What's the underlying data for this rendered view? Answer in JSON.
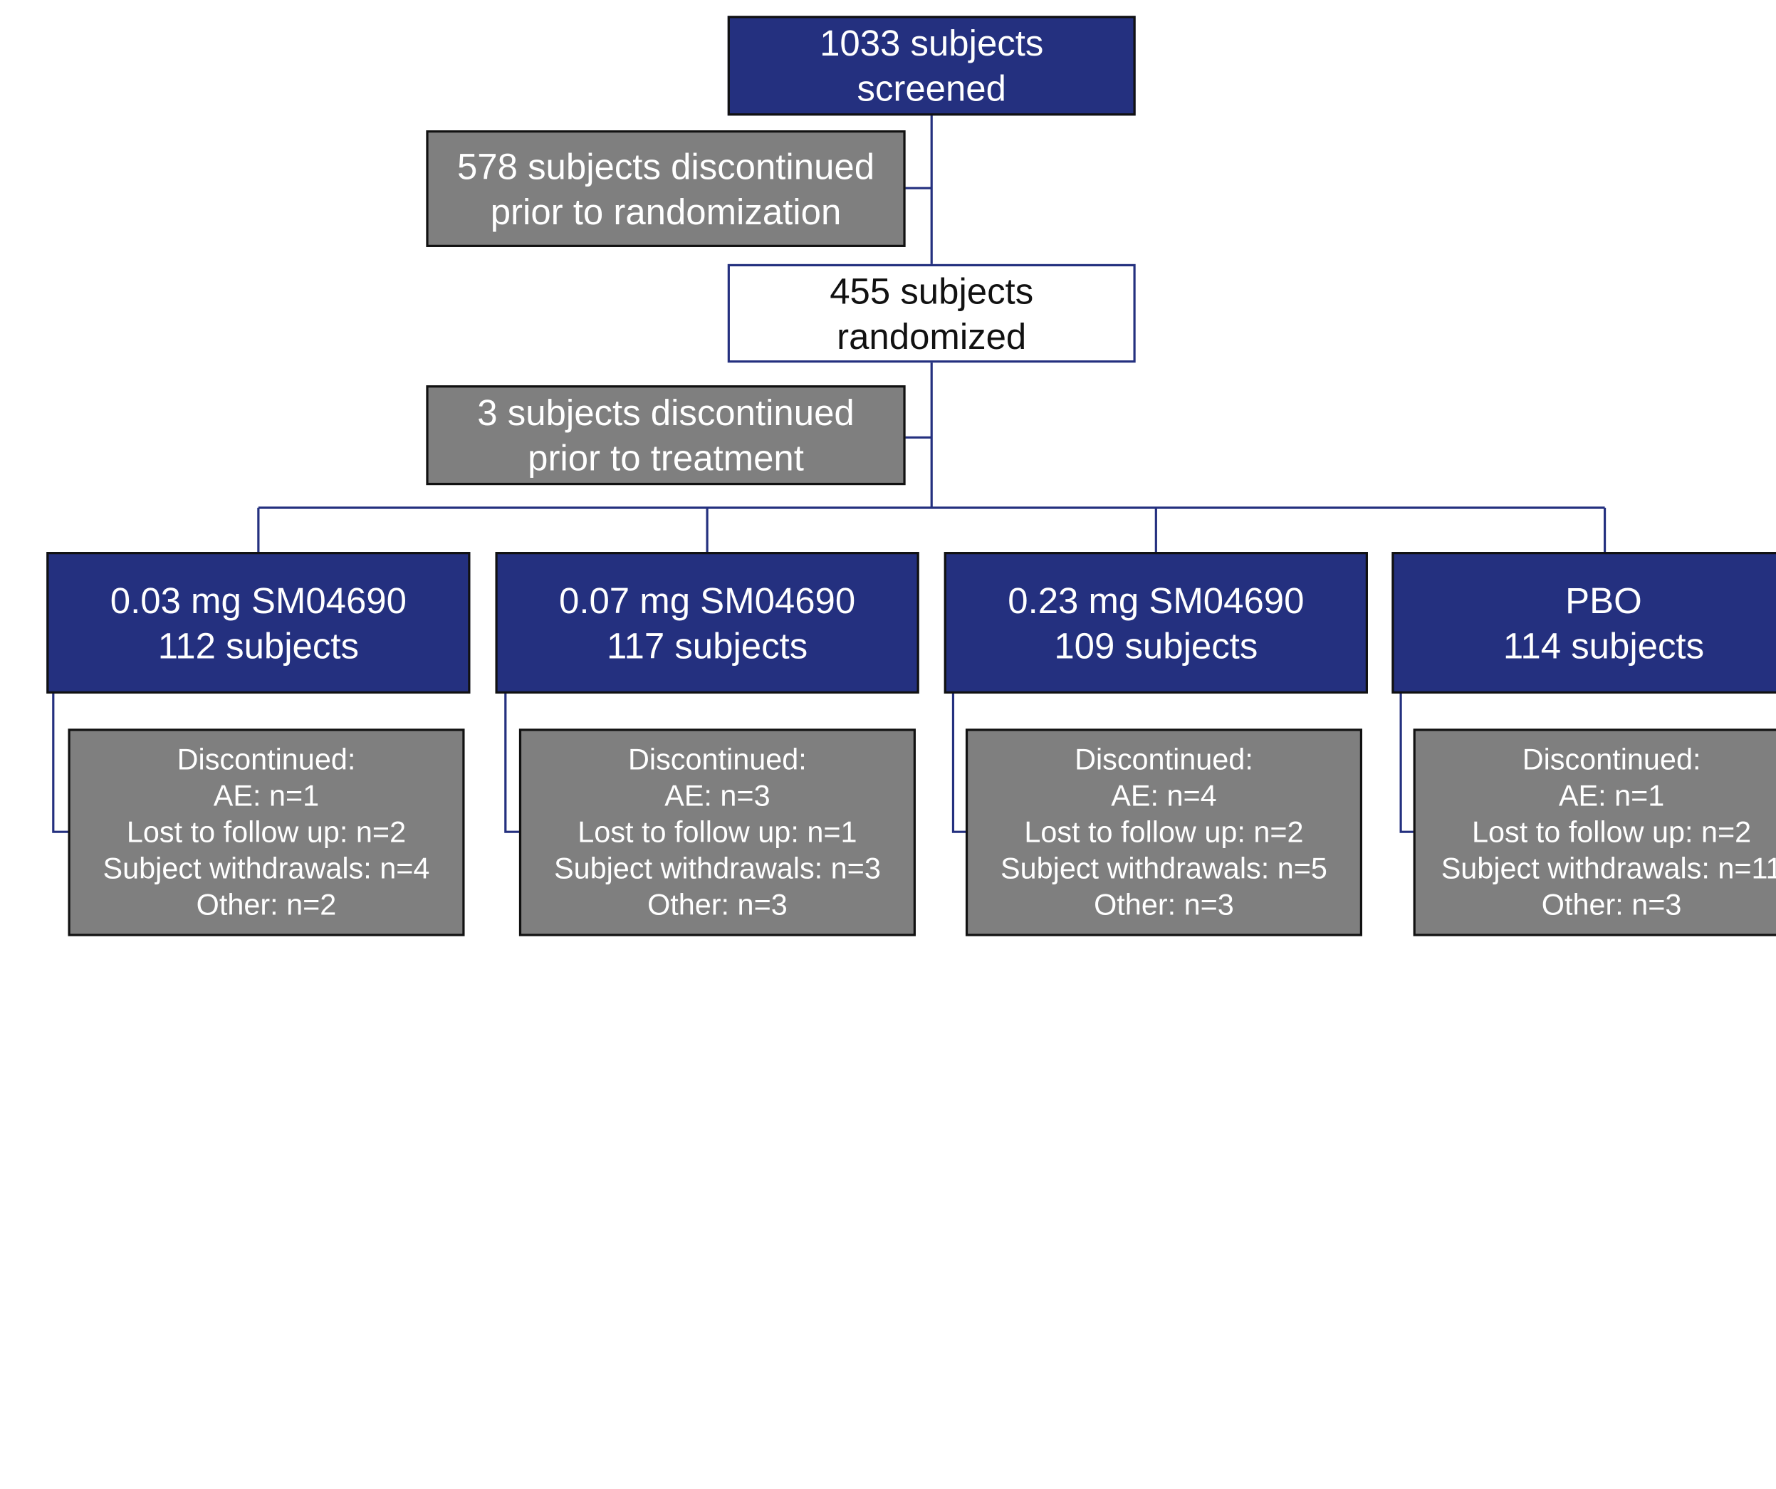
{
  "screened": {
    "line1": "1033 subjects",
    "line2": "screened"
  },
  "discontinued_prior_randomization": {
    "line1": "578 subjects discontinued",
    "line2": "prior to randomization"
  },
  "randomized": {
    "line1": "455 subjects",
    "line2": "randomized"
  },
  "discontinued_prior_treatment": {
    "line1": "3 subjects discontinued",
    "line2": "prior to treatment"
  },
  "arms": [
    {
      "name": "0.03 mg SM04690",
      "subjects": "112 subjects",
      "disc_title": "Discontinued:",
      "ae": "AE: n=1",
      "lost": "Lost to follow up: n=2",
      "withdrawals": "Subject withdrawals: n=4",
      "other": "Other: n=2"
    },
    {
      "name": "0.07 mg SM04690",
      "subjects": "117 subjects",
      "disc_title": "Discontinued:",
      "ae": "AE: n=3",
      "lost": "Lost to follow up: n=1",
      "withdrawals": "Subject withdrawals: n=3",
      "other": "Other: n=3"
    },
    {
      "name": "0.23 mg SM04690",
      "subjects": "109 subjects",
      "disc_title": "Discontinued:",
      "ae": "AE: n=4",
      "lost": "Lost to follow up: n=2",
      "withdrawals": "Subject withdrawals: n=5",
      "other": "Other: n=3"
    },
    {
      "name": "PBO",
      "subjects": "114 subjects",
      "disc_title": "Discontinued:",
      "ae": "AE: n=1",
      "lost": "Lost to follow up: n=2",
      "withdrawals": "Subject withdrawals: n=11",
      "other": "Other: n=3"
    }
  ],
  "colors": {
    "arm_fill": "#24307f",
    "discontinued_fill": "#7f7f7f",
    "connector": "#24307f"
  }
}
